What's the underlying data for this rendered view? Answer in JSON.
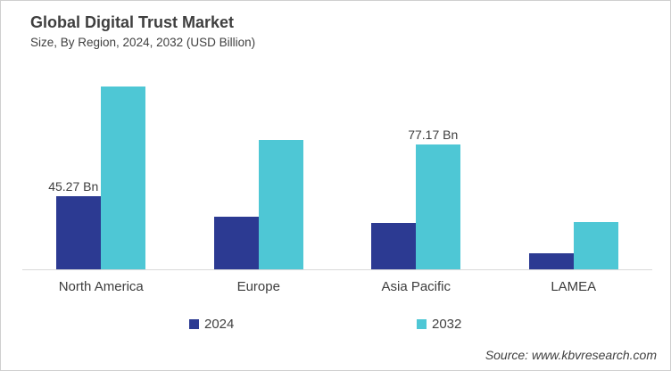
{
  "title": "Global Digital Trust Market",
  "subtitle": "Size, By Region, 2024, 2032 (USD Billion)",
  "source": "Source: www.kbvresearch.com",
  "chart_data": {
    "type": "bar",
    "title": "Global Digital Trust Market Size, By Region, 2024, 2032 (USD Billion)",
    "categories": [
      "North America",
      "Europe",
      "Asia Pacific",
      "LAMEA"
    ],
    "series": [
      {
        "name": "2024",
        "color": "#2C3A92",
        "values": [
          45.27,
          32.3,
          28.5,
          9.9
        ],
        "data_labels": [
          "45.27 Bn",
          null,
          null,
          null
        ]
      },
      {
        "name": "2032",
        "color": "#4EC7D5",
        "values": [
          112.8,
          79.9,
          77.17,
          29.0
        ],
        "data_labels": [
          null,
          null,
          "77.17 Bn",
          null
        ]
      }
    ],
    "xlabel": "",
    "ylabel": "USD Billion",
    "ylim": [
      0,
      127
    ],
    "grid": false,
    "legend_position": "bottom"
  }
}
